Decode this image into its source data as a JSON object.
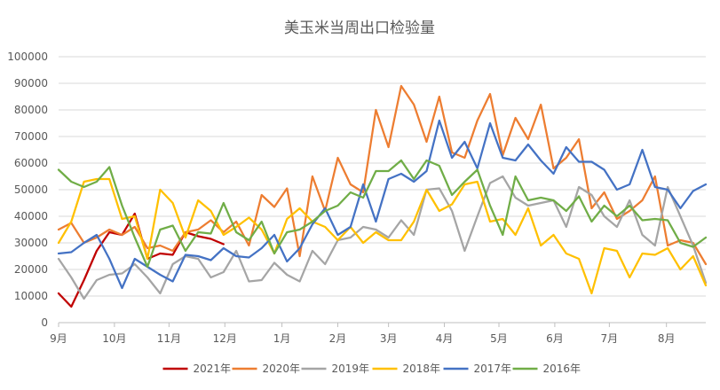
{
  "chart_data": {
    "type": "line",
    "title": "美玉米当周出口检验量",
    "xlabel": "",
    "ylabel": "",
    "ylim": [
      0,
      100000
    ],
    "yticks": [
      0,
      10000,
      20000,
      30000,
      40000,
      50000,
      60000,
      70000,
      80000,
      90000,
      100000
    ],
    "xlim": [
      0,
      51
    ],
    "xticks": [
      {
        "label": "9月",
        "week": 0
      },
      {
        "label": "10月",
        "week": 4.4
      },
      {
        "label": "11月",
        "week": 8.7
      },
      {
        "label": "12月",
        "week": 13.1
      },
      {
        "label": "1月",
        "week": 17.6
      },
      {
        "label": "2月",
        "week": 22
      },
      {
        "label": "3月",
        "week": 26
      },
      {
        "label": "4月",
        "week": 30.4
      },
      {
        "label": "5月",
        "week": 34.7
      },
      {
        "label": "6月",
        "week": 39.1
      },
      {
        "label": "7月",
        "week": 43.4
      },
      {
        "label": "8月",
        "week": 47.9
      }
    ],
    "grid": "horizontal",
    "legend_position": "bottom",
    "series": [
      {
        "name": "2021年",
        "color": "#c00000",
        "values": [
          11000,
          6000,
          16000,
          27000,
          34000,
          33000,
          41000,
          24000,
          26000,
          25500,
          34000,
          32500,
          31500,
          29500
        ]
      },
      {
        "name": "2020年",
        "color": "#ed7d31",
        "values": [
          35000,
          37500,
          30000,
          32000,
          35000,
          33000,
          36000,
          28000,
          29000,
          27000,
          34000,
          35000,
          38500,
          34000,
          38000,
          29000,
          48000,
          43500,
          50500,
          25000,
          55000,
          42000,
          62000,
          52000,
          49000,
          80000,
          66000,
          89000,
          82000,
          68000,
          85000,
          64000,
          62000,
          76000,
          86000,
          63000,
          77000,
          69000,
          82000,
          58000,
          62000,
          69000,
          43000,
          49000,
          39000,
          42000,
          46000,
          55000,
          29000,
          31000,
          30000,
          22000
        ]
      },
      {
        "name": "2019年",
        "color": "#a5a5a5",
        "values": [
          24000,
          17000,
          9000,
          16000,
          18000,
          18500,
          22000,
          17000,
          11000,
          22000,
          25000,
          24000,
          17000,
          19000,
          27000,
          15500,
          16000,
          22500,
          18000,
          15500,
          27000,
          22000,
          31000,
          32000,
          36000,
          35000,
          32000,
          38500,
          33000,
          50000,
          50500,
          42000,
          27000,
          40000,
          52500,
          55000,
          47000,
          44000,
          45000,
          46000,
          36000,
          51000,
          48000,
          40000,
          36000,
          46000,
          33000,
          29000,
          51000,
          40000,
          29000,
          15000
        ]
      },
      {
        "name": "2018年",
        "color": "#ffc000",
        "values": [
          30000,
          38000,
          53000,
          54000,
          54000,
          39000,
          40000,
          24000,
          50000,
          45000,
          32000,
          46000,
          42000,
          33000,
          36000,
          39500,
          35000,
          26000,
          39000,
          43000,
          38000,
          36000,
          31000,
          36000,
          30000,
          34000,
          31000,
          31000,
          38000,
          50000,
          42000,
          44500,
          52000,
          53000,
          38000,
          39000,
          33000,
          43000,
          29000,
          33000,
          26000,
          24000,
          11000,
          28000,
          27000,
          17000,
          26000,
          25500,
          28000,
          20000,
          25000,
          14000
        ]
      },
      {
        "name": "2017年",
        "color": "#4472c4",
        "values": [
          26000,
          26500,
          30000,
          33000,
          24000,
          13000,
          24000,
          21000,
          18000,
          15500,
          25500,
          25000,
          23500,
          28000,
          25000,
          24500,
          28000,
          33000,
          23000,
          28000,
          37000,
          43000,
          33000,
          36000,
          52000,
          38000,
          54000,
          56000,
          53000,
          57000,
          76000,
          62000,
          68000,
          58000,
          75000,
          62000,
          61000,
          67000,
          61000,
          56000,
          66000,
          60500,
          60500,
          57500,
          50000,
          52000,
          65000,
          51000,
          50000,
          43000,
          49500,
          52000
        ]
      },
      {
        "name": "2016年",
        "color": "#70ad47",
        "values": [
          57500,
          53000,
          51000,
          53000,
          58500,
          44000,
          32000,
          21000,
          35000,
          36500,
          27000,
          34000,
          33500,
          45000,
          34000,
          31000,
          38000,
          26000,
          34000,
          35000,
          38000,
          42000,
          44000,
          49000,
          47000,
          57000,
          57000,
          61000,
          54000,
          61000,
          59000,
          48000,
          53000,
          57500,
          44000,
          33000,
          55000,
          46000,
          47000,
          46000,
          42000,
          47500,
          38000,
          44000,
          40000,
          44000,
          38500,
          39000,
          38500,
          30000,
          28500,
          32000
        ]
      }
    ]
  }
}
